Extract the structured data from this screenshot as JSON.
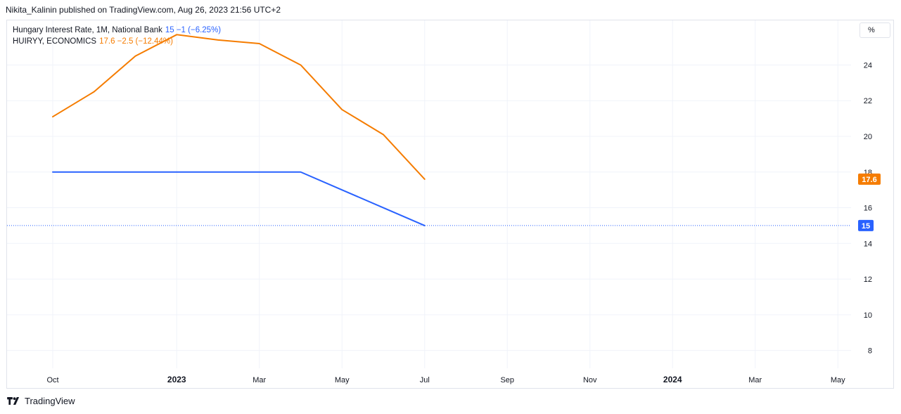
{
  "header": {
    "text": "Nikita_Kalinin published on TradingView.com, Aug 26, 2023 21:56 UTC+2"
  },
  "legend": [
    {
      "label": "Hungary Interest Rate, 1M, National Bank",
      "values": "15  −1 (−6.25%)",
      "color": "#2962ff"
    },
    {
      "label": "HUIRYY, ECONOMICS",
      "values": "17.6  −2.5 (−12.44%)",
      "color": "#f57c00"
    }
  ],
  "unit_label": "%",
  "footer": {
    "brand": "TradingView"
  },
  "chart_data": {
    "type": "line",
    "x_ticks": [
      "Oct",
      "2023",
      "Mar",
      "May",
      "Jul",
      "Sep",
      "Nov",
      "2024",
      "Mar",
      "May"
    ],
    "x_ticks_bold": [
      "2023",
      "2024"
    ],
    "y_ticks": [
      8,
      10,
      12,
      14,
      16,
      18,
      20,
      22,
      24
    ],
    "ylim": [
      7,
      26.5
    ],
    "grid": true,
    "series": [
      {
        "name": "Hungary Interest Rate, 1M, National Bank",
        "color": "#2962ff",
        "x": [
          "2022-10",
          "2022-11",
          "2022-12",
          "2023-01",
          "2023-02",
          "2023-03",
          "2023-04",
          "2023-05",
          "2023-06",
          "2023-07"
        ],
        "values": [
          18,
          18,
          18,
          18,
          18,
          18,
          18,
          17,
          16,
          15
        ],
        "last_value_label": "15"
      },
      {
        "name": "HUIRYY, ECONOMICS",
        "color": "#f57c00",
        "x": [
          "2022-10",
          "2022-11",
          "2022-12",
          "2023-01",
          "2023-02",
          "2023-03",
          "2023-04",
          "2023-05",
          "2023-06",
          "2023-07"
        ],
        "values": [
          21.1,
          22.5,
          24.5,
          25.7,
          25.4,
          25.2,
          24.0,
          21.5,
          20.1,
          17.6
        ],
        "last_value_label": "17.6"
      }
    ]
  }
}
